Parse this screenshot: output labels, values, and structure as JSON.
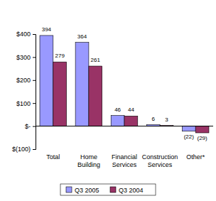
{
  "chart_data": {
    "type": "bar",
    "categories": [
      "Total",
      "Home Building",
      "Financial Services",
      "Construction Services",
      "Other*"
    ],
    "series": [
      {
        "name": "Q3 2005",
        "color": "#9999ff",
        "values": [
          394,
          364,
          46,
          6,
          -22
        ],
        "value_labels": [
          "394",
          "364",
          "46",
          "6",
          "(22)"
        ]
      },
      {
        "name": "Q3 2004",
        "color": "#993366",
        "values": [
          279,
          261,
          44,
          3,
          -29
        ],
        "value_labels": [
          "279",
          "261",
          "44",
          "3",
          "(29)"
        ]
      }
    ],
    "ylim": [
      -100,
      400
    ],
    "yticks": [
      {
        "value": -100,
        "label": "$(100)"
      },
      {
        "value": 0,
        "label": "$-"
      },
      {
        "value": 100,
        "label": "$100"
      },
      {
        "value": 200,
        "label": "$200"
      },
      {
        "value": 300,
        "label": "$300"
      },
      {
        "value": 400,
        "label": "$400"
      }
    ],
    "data_labels": true,
    "legend": "bottom"
  }
}
